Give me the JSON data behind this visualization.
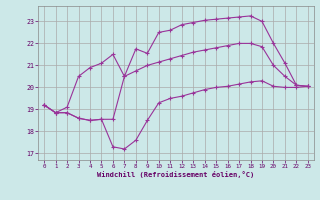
{
  "background_color": "#cce8e8",
  "grid_color": "#aaaaaa",
  "line_color": "#993399",
  "xlabel": "Windchill (Refroidissement éolien,°C)",
  "xlabel_color": "#660066",
  "tick_color": "#660066",
  "xlim": [
    -0.5,
    23.5
  ],
  "ylim": [
    16.7,
    23.7
  ],
  "yticks": [
    17,
    18,
    19,
    20,
    21,
    22,
    23
  ],
  "xticks": [
    0,
    1,
    2,
    3,
    4,
    5,
    6,
    7,
    8,
    9,
    10,
    11,
    12,
    13,
    14,
    15,
    16,
    17,
    18,
    19,
    20,
    21,
    22,
    23
  ],
  "line1_x": [
    0,
    1,
    2,
    3,
    4,
    5,
    6,
    7,
    8,
    9,
    10,
    11,
    12,
    13,
    14,
    15,
    16,
    17,
    18,
    19,
    20,
    21,
    22,
    23
  ],
  "line1_y": [
    19.2,
    18.85,
    18.85,
    18.6,
    18.5,
    18.55,
    17.3,
    17.2,
    17.6,
    18.5,
    19.3,
    19.5,
    19.6,
    19.75,
    19.9,
    20.0,
    20.05,
    20.15,
    20.25,
    20.3,
    20.05,
    20.0,
    20.0,
    20.05
  ],
  "line2_x": [
    0,
    1,
    2,
    3,
    4,
    5,
    6,
    7,
    8,
    9,
    10,
    11,
    12,
    13,
    14,
    15,
    16,
    17,
    18,
    19,
    20,
    21,
    22,
    23
  ],
  "line2_y": [
    19.2,
    18.85,
    19.1,
    20.5,
    20.9,
    21.1,
    21.5,
    20.5,
    21.75,
    21.55,
    22.5,
    22.6,
    22.85,
    22.95,
    23.05,
    23.1,
    23.15,
    23.2,
    23.25,
    23.0,
    22.0,
    21.1,
    20.1,
    20.05
  ],
  "line3_x": [
    0,
    1,
    2,
    3,
    4,
    5,
    6,
    7,
    8,
    9,
    10,
    11,
    12,
    13,
    14,
    15,
    16,
    17,
    18,
    19,
    20,
    21,
    22,
    23
  ],
  "line3_y": [
    19.2,
    18.85,
    18.85,
    18.6,
    18.5,
    18.55,
    18.55,
    20.5,
    20.75,
    21.0,
    21.15,
    21.3,
    21.45,
    21.6,
    21.7,
    21.8,
    21.9,
    22.0,
    22.0,
    21.85,
    21.0,
    20.5,
    20.1,
    20.05
  ]
}
